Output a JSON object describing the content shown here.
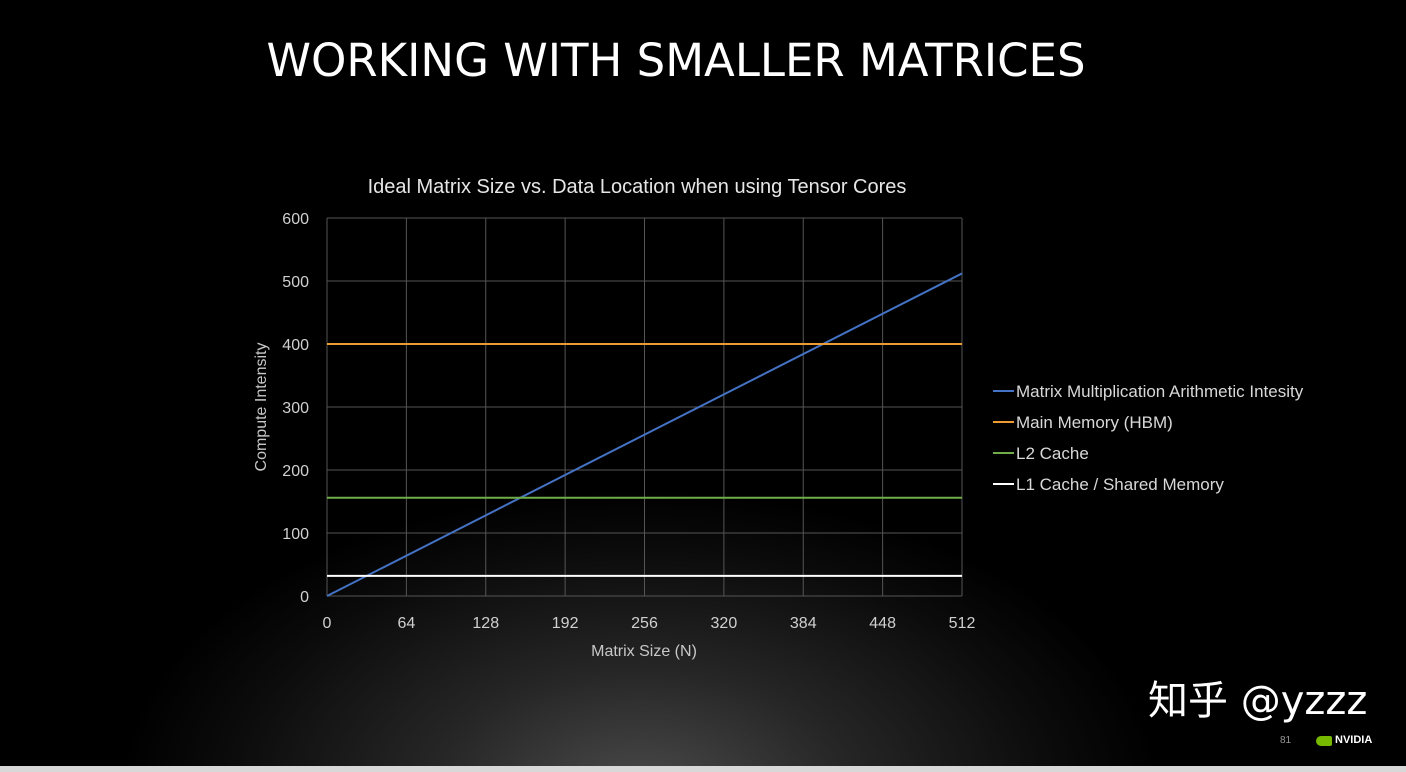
{
  "slide": {
    "title": "WORKING WITH SMALLER MATRICES",
    "page_number": "81",
    "brand": "NVIDIA",
    "watermark": "知乎 @yzzz",
    "brand_color": "#76b900"
  },
  "chart_data": {
    "type": "line",
    "title": "Ideal Matrix Size vs. Data Location when using Tensor Cores",
    "xlabel": "Matrix Size (N)",
    "ylabel": "Compute Intensity",
    "xlim": [
      0,
      512
    ],
    "ylim": [
      0,
      600
    ],
    "xticks": [
      0,
      64,
      128,
      192,
      256,
      320,
      384,
      448,
      512
    ],
    "yticks": [
      0,
      100,
      200,
      300,
      400,
      500,
      600
    ],
    "grid": true,
    "legend_position": "right",
    "series": [
      {
        "name": "Matrix Multiplication Arithmetic Intesity",
        "color": "#4472c4",
        "x": [
          0,
          512
        ],
        "y": [
          0,
          512
        ]
      },
      {
        "name": "Main Memory (HBM)",
        "color": "#ed9b33",
        "x": [
          0,
          512
        ],
        "y": [
          400,
          400
        ]
      },
      {
        "name": "L2 Cache",
        "color": "#70ad47",
        "x": [
          0,
          512
        ],
        "y": [
          156,
          156
        ]
      },
      {
        "name": "L1 Cache / Shared Memory",
        "color": "#ffffff",
        "x": [
          0,
          512
        ],
        "y": [
          32,
          32
        ]
      }
    ]
  }
}
